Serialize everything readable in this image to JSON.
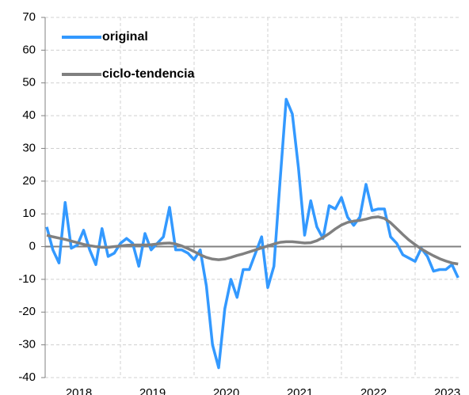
{
  "chart_data": {
    "type": "line",
    "categories": [
      null,
      null,
      null,
      null,
      null,
      null,
      "2018",
      null,
      null,
      null,
      null,
      null,
      null,
      null,
      null,
      null,
      null,
      null,
      "2019",
      null,
      null,
      null,
      null,
      null,
      null,
      null,
      null,
      null,
      null,
      null,
      "2020",
      null,
      null,
      null,
      null,
      null,
      null,
      null,
      null,
      null,
      null,
      null,
      "2021",
      null,
      null,
      null,
      null,
      null,
      null,
      null,
      null,
      null,
      null,
      null,
      "2022",
      null,
      null,
      null,
      null,
      null,
      null,
      null,
      null,
      null,
      null,
      null,
      "2023",
      null
    ],
    "series": [
      {
        "name": "original",
        "color": "#3399ff",
        "values": [
          6,
          -1,
          -5,
          13.5,
          -0.5,
          0.5,
          5,
          -1,
          -5.5,
          5.5,
          -3,
          -2,
          1,
          2.5,
          1,
          -6,
          4,
          -1,
          1,
          3,
          12,
          -1,
          -1,
          -2,
          -4,
          -1,
          -12,
          -30,
          -37,
          -19,
          -10,
          -15.5,
          -7,
          -7,
          -2,
          3,
          -12.5,
          -6,
          20,
          45,
          40.5,
          24,
          3.5,
          14,
          6,
          2.5,
          12.5,
          11.5,
          15,
          9,
          6.5,
          9,
          19,
          11,
          11.5,
          11.5,
          3,
          1,
          -2.5,
          -3.5,
          -4.5,
          -0.5,
          -3,
          -7.5,
          -7,
          -7,
          -5.5,
          -9.5
        ]
      },
      {
        "name": "ciclo-tendencia",
        "color": "#808080",
        "values": [
          3.5,
          3,
          2.6,
          2.2,
          1.7,
          1.2,
          0.7,
          0.3,
          0,
          -0.2,
          -0.2,
          0,
          0.2,
          0.4,
          0.5,
          0.5,
          0.5,
          0.6,
          0.8,
          1,
          1.1,
          0.8,
          0.2,
          -0.6,
          -1.5,
          -2.5,
          -3.3,
          -3.8,
          -4,
          -3.8,
          -3.3,
          -2.7,
          -2.2,
          -1.6,
          -1,
          -0.4,
          0.2,
          0.8,
          1.3,
          1.5,
          1.5,
          1.3,
          1.1,
          1.2,
          1.8,
          2.8,
          4,
          5.4,
          6.6,
          7.4,
          7.8,
          8,
          8.4,
          8.9,
          9.1,
          8.6,
          7.3,
          5.5,
          3.7,
          2,
          0.6,
          -0.7,
          -1.8,
          -2.8,
          -3.7,
          -4.4,
          -5,
          -5.3
        ]
      }
    ],
    "ylim": [
      -40,
      70
    ],
    "yticks": [
      -40,
      -30,
      -20,
      -10,
      0,
      10,
      20,
      30,
      40,
      50,
      60,
      70
    ],
    "grid": true,
    "legend": "top-left"
  }
}
